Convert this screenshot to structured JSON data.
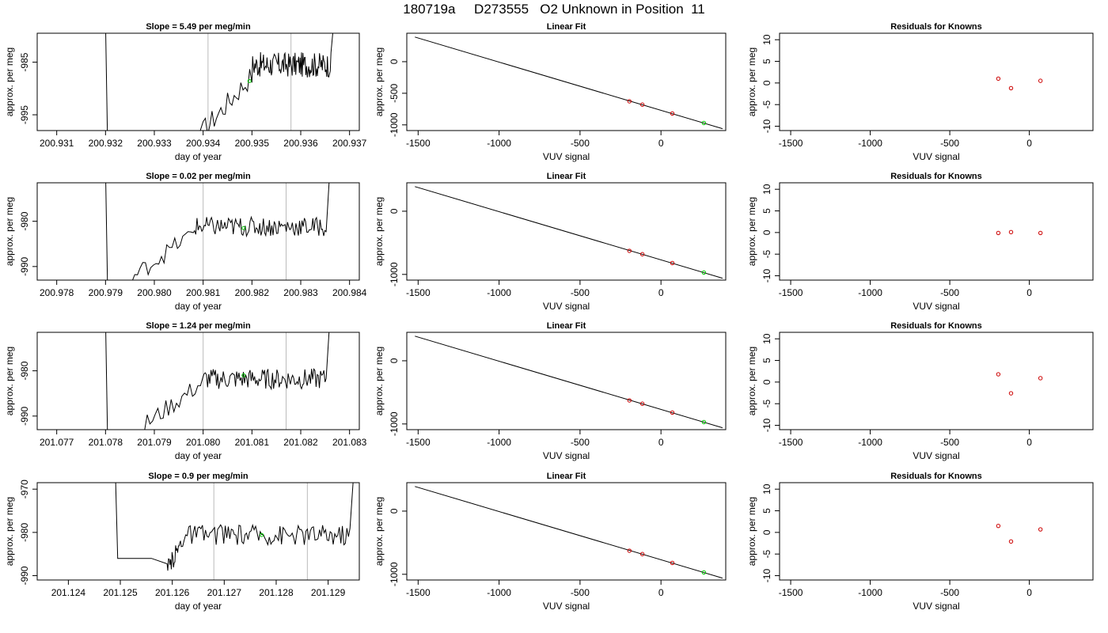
{
  "title": "180719a     D273555   O2 Unknown in Position  11",
  "colors": {
    "trace": "#000000",
    "known_marker": "#cc0000",
    "unknown_marker": "#00cc00",
    "vline": "#bbbbbb"
  },
  "chart_data": [
    {
      "type": "line",
      "row": 0,
      "col": 0,
      "title": "Slope =  5.49  per meg/min",
      "xlabel": "day of year",
      "ylabel": "approx. per meg",
      "xlim": [
        200.9306,
        200.9372
      ],
      "ylim": [
        -998,
        -979.5
      ],
      "xticks": [
        200.931,
        200.932,
        200.933,
        200.934,
        200.935,
        200.936,
        200.937
      ],
      "xticklabels": [
        "200.931",
        "200.932",
        "200.933",
        "200.934",
        "200.935",
        "200.936",
        "200.937"
      ],
      "yticks": [
        -985,
        -995
      ],
      "yticklabels": [
        "-985",
        "-995"
      ],
      "vlines": [
        200.9341,
        200.9358
      ],
      "marker": {
        "x": 200.93495,
        "y": -988.6
      },
      "trace": {
        "drop": {
          "x": 200.932,
          "y_start": -977,
          "y_end": -1005
        },
        "rise_start": {
          "x": 200.934,
          "y": -998
        },
        "rise_end": {
          "x": 200.935,
          "y": -987.5
        },
        "plateau": -985.5,
        "amp": 2.0,
        "end": {
          "x": 200.9367,
          "y": -975
        }
      }
    },
    {
      "type": "scatter",
      "row": 0,
      "col": 1,
      "title": "Linear Fit",
      "xlabel": "VUV signal",
      "ylabel": "approx. per meg",
      "xlim": [
        -1570,
        400
      ],
      "ylim": [
        -1090,
        450
      ],
      "xticks": [
        -1500,
        -1000,
        -500,
        0
      ],
      "xticklabels": [
        "-1500",
        "-1000",
        "-500",
        "0"
      ],
      "yticks": [
        0,
        -500,
        -1000
      ],
      "yticklabels": [
        "0",
        "-500",
        "-1000"
      ],
      "line": {
        "x": [
          -1520,
          380
        ],
        "y": [
          390,
          -1060
        ]
      },
      "known_points": [
        {
          "x": -195,
          "y": -627
        },
        {
          "x": -115,
          "y": -680
        },
        {
          "x": 70,
          "y": -820
        }
      ],
      "unknown_point": {
        "x": 265,
        "y": -970
      }
    },
    {
      "type": "scatter",
      "row": 0,
      "col": 2,
      "title": "Residuals for Knowns",
      "xlabel": "VUV signal",
      "ylabel": "approx. per meg",
      "xlim": [
        -1570,
        400
      ],
      "ylim": [
        -11,
        11.5
      ],
      "xticks": [
        -1500,
        -1000,
        -500,
        0
      ],
      "xticklabels": [
        "-1500",
        "-1000",
        "-500",
        "0"
      ],
      "yticks": [
        10,
        5,
        0,
        -5,
        -10
      ],
      "yticklabels": [
        "10",
        "5",
        "0",
        "-5",
        "-10"
      ],
      "points": [
        {
          "x": -195,
          "y": 1.0
        },
        {
          "x": -115,
          "y": -1.2
        },
        {
          "x": 70,
          "y": 0.5
        }
      ]
    },
    {
      "type": "line",
      "row": 1,
      "col": 0,
      "title": "Slope =  0.02  per meg/min",
      "xlabel": "day of year",
      "ylabel": "approx. per meg",
      "xlim": [
        200.9776,
        200.9842
      ],
      "ylim": [
        -993,
        -971.5
      ],
      "xticks": [
        200.978,
        200.979,
        200.98,
        200.981,
        200.982,
        200.983,
        200.984
      ],
      "xticklabels": [
        "200.978",
        "200.979",
        "200.980",
        "200.981",
        "200.982",
        "200.983",
        "200.984"
      ],
      "yticks": [
        -980,
        -990
      ],
      "yticklabels": [
        "-980",
        "-990"
      ],
      "vlines": [
        200.981,
        200.9827
      ],
      "marker": {
        "x": 200.98183,
        "y": -981.5
      },
      "trace": {
        "drop": {
          "x": 200.979,
          "y_start": -968,
          "y_end": -1000
        },
        "rise_start": {
          "x": 200.9796,
          "y": -992
        },
        "rise_end": {
          "x": 200.9808,
          "y": -982.5
        },
        "plateau": -981.2,
        "amp": 1.8,
        "end": {
          "x": 200.9836,
          "y": -968
        }
      }
    },
    {
      "type": "scatter",
      "row": 1,
      "col": 1,
      "title": "Linear Fit",
      "xlabel": "VUV signal",
      "ylabel": "approx. per meg",
      "xlim": [
        -1570,
        400
      ],
      "ylim": [
        -1090,
        450
      ],
      "xticks": [
        -1500,
        -1000,
        -500,
        0
      ],
      "xticklabels": [
        "-1500",
        "-1000",
        "-500",
        "0"
      ],
      "yticks": [
        0,
        -1000
      ],
      "yticklabels": [
        "0",
        "-1000"
      ],
      "line": {
        "x": [
          -1520,
          380
        ],
        "y": [
          390,
          -1060
        ]
      },
      "known_points": [
        {
          "x": -195,
          "y": -627
        },
        {
          "x": -115,
          "y": -680
        },
        {
          "x": 70,
          "y": -820
        }
      ],
      "unknown_point": {
        "x": 265,
        "y": -970
      }
    },
    {
      "type": "scatter",
      "row": 1,
      "col": 2,
      "title": "Residuals for Knowns",
      "xlabel": "VUV signal",
      "ylabel": "approx. per meg",
      "xlim": [
        -1570,
        400
      ],
      "ylim": [
        -11,
        11.5
      ],
      "xticks": [
        -1500,
        -1000,
        -500,
        0
      ],
      "xticklabels": [
        "-1500",
        "-1000",
        "-500",
        "0"
      ],
      "yticks": [
        10,
        5,
        0,
        -5,
        -10
      ],
      "yticklabels": [
        "10",
        "5",
        "0",
        "-5",
        "-10"
      ],
      "points": [
        {
          "x": -195,
          "y": -0.1
        },
        {
          "x": -115,
          "y": 0.1
        },
        {
          "x": 70,
          "y": -0.1
        }
      ]
    },
    {
      "type": "line",
      "row": 2,
      "col": 0,
      "title": "Slope =  1.24  per meg/min",
      "xlabel": "day of year",
      "ylabel": "approx. per meg",
      "xlim": [
        201.0766,
        201.0832
      ],
      "ylim": [
        -993,
        -971.5
      ],
      "xticks": [
        201.077,
        201.078,
        201.079,
        201.08,
        201.081,
        201.082,
        201.083
      ],
      "xticklabels": [
        "201.077",
        "201.078",
        "201.079",
        "201.080",
        "201.081",
        "201.082",
        "201.083"
      ],
      "yticks": [
        -980,
        -990
      ],
      "yticklabels": [
        "-980",
        "-990"
      ],
      "vlines": [
        201.08,
        201.0817
      ],
      "marker": {
        "x": 201.08083,
        "y": -981.0
      },
      "trace": {
        "drop": {
          "x": 201.078,
          "y_start": -968,
          "y_end": -1000
        },
        "rise_start": {
          "x": 201.0788,
          "y": -992
        },
        "rise_end": {
          "x": 201.08,
          "y": -982.5
        },
        "plateau": -981.8,
        "amp": 1.9,
        "end": {
          "x": 201.0826,
          "y": -968
        }
      }
    },
    {
      "type": "scatter",
      "row": 2,
      "col": 1,
      "title": "Linear Fit",
      "xlabel": "VUV signal",
      "ylabel": "approx. per meg",
      "xlim": [
        -1570,
        400
      ],
      "ylim": [
        -1090,
        450
      ],
      "xticks": [
        -1500,
        -1000,
        -500,
        0
      ],
      "xticklabels": [
        "-1500",
        "-1000",
        "-500",
        "0"
      ],
      "yticks": [
        0,
        -1000
      ],
      "yticklabels": [
        "0",
        "-1000"
      ],
      "line": {
        "x": [
          -1520,
          380
        ],
        "y": [
          390,
          -1060
        ]
      },
      "known_points": [
        {
          "x": -195,
          "y": -627
        },
        {
          "x": -115,
          "y": -680
        },
        {
          "x": 70,
          "y": -820
        }
      ],
      "unknown_point": {
        "x": 265,
        "y": -970
      }
    },
    {
      "type": "scatter",
      "row": 2,
      "col": 2,
      "title": "Residuals for Knowns",
      "xlabel": "VUV signal",
      "ylabel": "approx. per meg",
      "xlim": [
        -1570,
        400
      ],
      "ylim": [
        -11,
        11.5
      ],
      "xticks": [
        -1500,
        -1000,
        -500,
        0
      ],
      "xticklabels": [
        "-1500",
        "-1000",
        "-500",
        "0"
      ],
      "yticks": [
        10,
        5,
        0,
        -5,
        -10
      ],
      "yticklabels": [
        "10",
        "5",
        "0",
        "-5",
        "-10"
      ],
      "points": [
        {
          "x": -195,
          "y": 1.8
        },
        {
          "x": -115,
          "y": -2.6
        },
        {
          "x": 70,
          "y": 0.9
        }
      ]
    },
    {
      "type": "line",
      "row": 3,
      "col": 0,
      "title": "Slope =  0.9  per meg/min",
      "xlabel": "day of year",
      "ylabel": "approx. per meg",
      "xlim": [
        201.1234,
        201.1296
      ],
      "ylim": [
        -991,
        -968.5
      ],
      "xticks": [
        201.124,
        201.125,
        201.126,
        201.127,
        201.128,
        201.129
      ],
      "xticklabels": [
        "201.124",
        "201.125",
        "201.126",
        "201.127",
        "201.128",
        "201.129"
      ],
      "yticks": [
        -970,
        -980,
        -990
      ],
      "yticklabels": [
        "-970",
        "-980",
        "-990"
      ],
      "vlines": [
        201.1268,
        201.1286
      ],
      "marker": {
        "x": 201.12772,
        "y": -980.6
      },
      "trace": {
        "drop": {
          "x": 201.1249,
          "y_start": -964,
          "y_end": -986
        },
        "rise_start": {
          "x": 201.1259,
          "y": -989
        },
        "rise_end": {
          "x": 201.1262,
          "y": -981.5
        },
        "plateau": -980.5,
        "amp": 2.0,
        "end": {
          "x": 201.1295,
          "y": -965
        }
      }
    },
    {
      "type": "scatter",
      "row": 3,
      "col": 1,
      "title": "Linear Fit",
      "xlabel": "VUV signal",
      "ylabel": "approx. per meg",
      "xlim": [
        -1570,
        400
      ],
      "ylim": [
        -1090,
        450
      ],
      "xticks": [
        -1500,
        -1000,
        -500,
        0
      ],
      "xticklabels": [
        "-1500",
        "-1000",
        "-500",
        "0"
      ],
      "yticks": [
        0,
        -1000
      ],
      "yticklabels": [
        "0",
        "-1000"
      ],
      "line": {
        "x": [
          -1520,
          380
        ],
        "y": [
          390,
          -1060
        ]
      },
      "known_points": [
        {
          "x": -195,
          "y": -627
        },
        {
          "x": -115,
          "y": -680
        },
        {
          "x": 70,
          "y": -820
        }
      ],
      "unknown_point": {
        "x": 265,
        "y": -970
      }
    },
    {
      "type": "scatter",
      "row": 3,
      "col": 2,
      "title": "Residuals for Knowns",
      "xlabel": "VUV signal",
      "ylabel": "approx. per meg",
      "xlim": [
        -1570,
        400
      ],
      "ylim": [
        -11,
        11.5
      ],
      "xticks": [
        -1500,
        -1000,
        -500,
        0
      ],
      "xticklabels": [
        "-1500",
        "-1000",
        "-500",
        "0"
      ],
      "yticks": [
        10,
        5,
        0,
        -5,
        -10
      ],
      "yticklabels": [
        "10",
        "5",
        "0",
        "-5",
        "-10"
      ],
      "points": [
        {
          "x": -195,
          "y": 1.5
        },
        {
          "x": -115,
          "y": -2.1
        },
        {
          "x": 70,
          "y": 0.7
        }
      ]
    }
  ]
}
